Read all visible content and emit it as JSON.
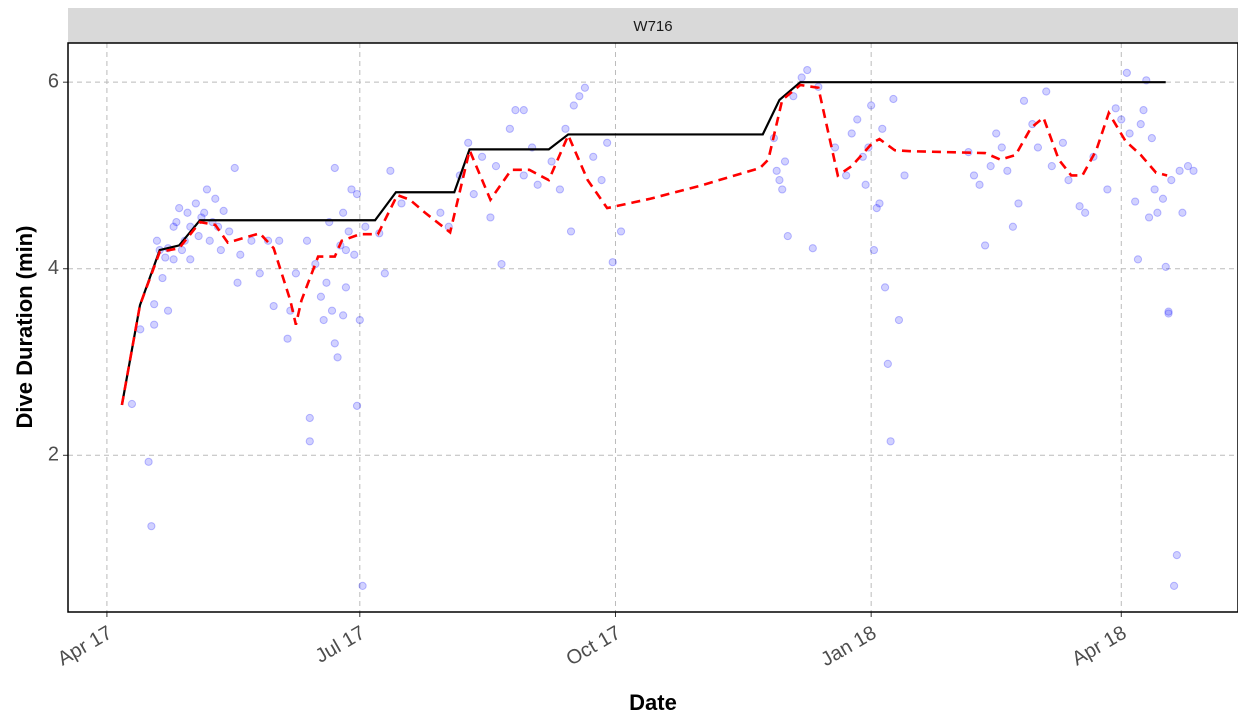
{
  "chart_data": {
    "type": "line",
    "facet": "W716",
    "x_label": "Date",
    "y_label": "Dive Duration (min)",
    "xlim": [
      -14,
      407
    ],
    "ylim": [
      0.32,
      6.42
    ],
    "xticks": [
      {
        "value": 0,
        "label": "Apr 17"
      },
      {
        "value": 91,
        "label": "Jul 17"
      },
      {
        "value": 183,
        "label": "Oct 17"
      },
      {
        "value": 275,
        "label": "Jan 18"
      },
      {
        "value": 365,
        "label": "Apr 18"
      }
    ],
    "yticks": [
      2,
      4,
      6
    ],
    "grid": true,
    "series": [
      {
        "type": "scatter",
        "color": "#0000ff",
        "x": [
          9,
          12,
          15,
          16,
          17,
          17,
          18,
          19,
          20,
          21,
          22,
          22,
          24,
          24,
          25,
          26,
          27,
          28,
          29,
          30,
          30,
          32,
          33,
          34,
          35,
          36,
          37,
          38,
          39,
          40,
          41,
          42,
          44,
          46,
          47,
          48,
          52,
          55,
          58,
          60,
          62,
          65,
          66,
          68,
          72,
          73,
          73,
          75,
          77,
          78,
          79,
          80,
          81,
          82,
          82,
          83,
          84,
          85,
          85,
          86,
          86,
          87,
          88,
          89,
          90,
          90,
          91,
          92,
          93,
          98,
          100,
          102,
          106,
          120,
          123,
          127,
          130,
          132,
          135,
          138,
          140,
          142,
          145,
          147,
          150,
          150,
          153,
          155,
          160,
          163,
          165,
          167,
          168,
          170,
          172,
          175,
          178,
          180,
          182,
          185,
          240,
          241,
          242,
          243,
          244,
          245,
          247,
          250,
          252,
          254,
          256,
          262,
          266,
          268,
          270,
          272,
          273,
          274,
          275,
          276,
          277,
          278,
          279,
          280,
          281,
          282,
          283,
          285,
          287,
          310,
          312,
          314,
          316,
          318,
          320,
          322,
          324,
          326,
          328,
          330,
          333,
          335,
          338,
          340,
          344,
          346,
          350,
          352,
          355,
          360,
          363,
          365,
          367,
          368,
          370,
          371,
          372,
          373,
          374,
          375,
          376,
          377,
          378,
          380,
          381,
          382,
          382,
          383,
          384,
          385,
          386,
          387,
          389,
          391
        ],
        "values": [
          2.55,
          3.35,
          1.93,
          1.24,
          3.4,
          3.62,
          4.3,
          4.2,
          3.9,
          4.12,
          4.22,
          3.55,
          4.45,
          4.1,
          4.5,
          4.65,
          4.2,
          4.3,
          4.6,
          4.1,
          4.45,
          4.7,
          4.35,
          4.55,
          4.6,
          4.85,
          4.3,
          4.5,
          4.75,
          4.45,
          4.2,
          4.62,
          4.4,
          5.08,
          3.85,
          4.15,
          4.3,
          3.95,
          4.3,
          3.6,
          4.3,
          3.25,
          3.55,
          3.95,
          4.3,
          2.4,
          2.15,
          4.05,
          3.7,
          3.45,
          3.85,
          4.5,
          3.55,
          5.08,
          3.2,
          3.05,
          4.25,
          3.5,
          4.6,
          3.8,
          4.2,
          4.4,
          4.85,
          4.15,
          2.53,
          4.8,
          3.45,
          0.6,
          4.45,
          4.38,
          3.95,
          5.05,
          4.7,
          4.6,
          4.45,
          5.0,
          5.35,
          4.8,
          5.2,
          4.55,
          5.1,
          4.05,
          5.5,
          5.7,
          5.7,
          5.0,
          5.3,
          4.9,
          5.15,
          4.85,
          5.5,
          4.4,
          5.75,
          5.85,
          5.94,
          5.2,
          4.95,
          5.35,
          4.07,
          4.4,
          5.4,
          5.05,
          4.95,
          4.85,
          5.15,
          4.35,
          5.85,
          6.05,
          6.13,
          4.22,
          5.95,
          5.3,
          5.0,
          5.45,
          5.6,
          5.2,
          4.9,
          5.3,
          5.75,
          4.2,
          4.65,
          4.7,
          5.5,
          3.8,
          2.98,
          2.15,
          5.82,
          3.45,
          5.0,
          5.25,
          5.0,
          4.9,
          4.25,
          5.1,
          5.45,
          5.3,
          5.05,
          4.45,
          4.7,
          5.8,
          5.55,
          5.3,
          5.9,
          5.1,
          5.35,
          4.95,
          4.67,
          4.6,
          5.2,
          4.85,
          5.72,
          5.6,
          6.1,
          5.45,
          4.72,
          4.1,
          5.55,
          5.7,
          6.02,
          4.55,
          5.4,
          4.85,
          4.6,
          4.75,
          4.02,
          3.54,
          3.52,
          4.95,
          0.6,
          0.93,
          5.05,
          4.6,
          5.1,
          5.05
        ]
      },
      {
        "type": "line",
        "color": "#000000",
        "dash": false,
        "x": [
          5.4,
          11.9,
          19,
          26,
          33.5,
          96.5,
          104,
          125,
          130.5,
          159,
          166,
          236,
          242,
          249.5,
          381
        ],
        "values": [
          2.54,
          3.61,
          4.2,
          4.25,
          4.52,
          4.52,
          4.82,
          4.82,
          5.28,
          5.28,
          5.44,
          5.44,
          5.81,
          6.0,
          6.0
        ]
      },
      {
        "type": "line",
        "color": "#ff0000",
        "dash": true,
        "x": [
          5.4,
          11.9,
          19,
          26,
          33.5,
          39,
          43.5,
          55,
          60,
          66,
          68,
          70,
          76,
          82,
          84.5,
          91,
          97.5,
          104.5,
          109,
          114.5,
          123.5,
          130.5,
          138,
          145.5,
          152,
          159,
          166,
          173,
          180,
          195.5,
          213.5,
          235,
          238,
          243,
          249.5,
          256,
          263,
          268,
          275.5,
          278,
          283.5,
          289,
          316,
          321.5,
          327,
          332.5,
          337,
          342.5,
          347,
          351,
          356,
          360.5,
          366.5,
          372,
          377.5,
          381.5
        ],
        "values": [
          2.54,
          3.61,
          4.18,
          4.22,
          4.5,
          4.47,
          4.28,
          4.38,
          4.22,
          3.66,
          3.4,
          3.66,
          4.13,
          4.13,
          4.3,
          4.37,
          4.37,
          4.79,
          4.74,
          4.6,
          4.39,
          5.27,
          4.74,
          5.06,
          5.06,
          4.95,
          5.43,
          4.95,
          4.65,
          4.75,
          4.89,
          5.08,
          5.17,
          5.81,
          5.97,
          5.94,
          5.0,
          5.1,
          5.35,
          5.39,
          5.27,
          5.26,
          5.24,
          5.17,
          5.22,
          5.51,
          5.62,
          5.17,
          5.0,
          5.0,
          5.27,
          5.67,
          5.37,
          5.22,
          5.03,
          5.0
        ]
      }
    ]
  }
}
